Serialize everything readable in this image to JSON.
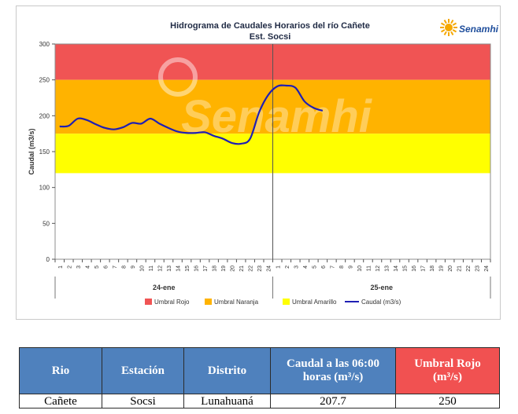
{
  "chart_data": {
    "type": "line",
    "title": "Hidrograma  de Caudales Horarios  del río Cañete",
    "subtitle": "Est. Socsi",
    "ylabel": "Caudal (m3/s)",
    "xlabel": "",
    "ylim": [
      0,
      300
    ],
    "yticks": [
      "0",
      "50",
      "100",
      "150",
      "200",
      "250",
      "300"
    ],
    "hour_labels": [
      "1",
      "2",
      "3",
      "4",
      "5",
      "6",
      "7",
      "8",
      "9",
      "10",
      "11",
      "12",
      "13",
      "14",
      "15",
      "16",
      "17",
      "18",
      "19",
      "20",
      "21",
      "22",
      "23",
      "24"
    ],
    "day_labels": [
      "24-ene",
      "25-ene"
    ],
    "grid": false,
    "legend_position": "bottom",
    "bands": [
      {
        "name": "Umbral Rojo",
        "from": 250,
        "to": 300,
        "color": "#f05454"
      },
      {
        "name": "Umbral Naranja",
        "from": 175,
        "to": 250,
        "color": "#ffb300"
      },
      {
        "name": "Umbral Amarillo",
        "from": 120,
        "to": 175,
        "color": "#ffff00"
      }
    ],
    "series": [
      {
        "name": "Caudal (m3/s)",
        "color": "#1f1fb4",
        "x": [
          1,
          2,
          3,
          4,
          5,
          6,
          7,
          8,
          9,
          10,
          11,
          12,
          13,
          14,
          15,
          16,
          17,
          18,
          19,
          20,
          21,
          22,
          23,
          24,
          25,
          26,
          27,
          28,
          29,
          30
        ],
        "values": [
          185,
          186,
          196,
          194,
          188,
          183,
          181,
          184,
          190,
          189,
          196,
          189,
          183,
          178,
          176,
          176,
          177,
          172,
          168,
          162,
          161,
          168,
          205,
          229,
          241,
          242,
          239,
          220,
          211,
          207
        ]
      }
    ],
    "watermark": "Senamhi",
    "logo_text": "Senamhi"
  },
  "table": {
    "headers": [
      "Rio",
      "Estación",
      "Distrito",
      "Caudal a las 06:00 horas (m³/s)",
      "Umbral Rojo (m³/s)"
    ],
    "row": [
      "Cañete",
      "Socsi",
      "Lunahuaná",
      "207.7",
      "250"
    ]
  }
}
